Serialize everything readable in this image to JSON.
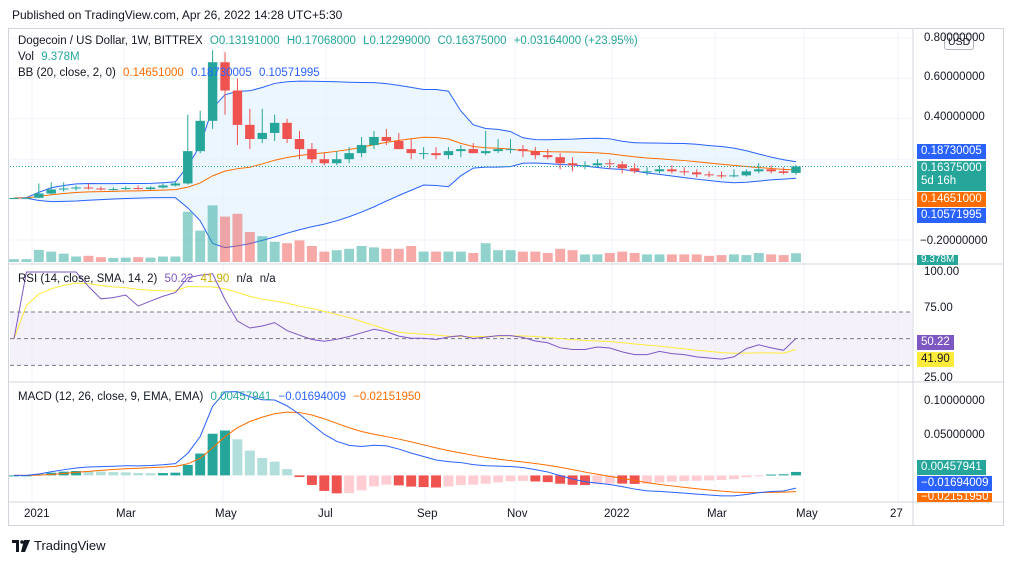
{
  "header": {
    "published": "Published on TradingView.com, Apr 26, 2022 14:28 UTC+5:30"
  },
  "brand": {
    "name": "TradingView",
    "logo_icon": "tradingview-logo-icon"
  },
  "currency_button": "USD",
  "legend": {
    "symbol": "Dogecoin / US Dollar, 1W, BITTREX",
    "open": "O0.13191000",
    "high": "H0.17068000",
    "low": "L0.12299000",
    "close": "C0.16375000",
    "change": "+0.03164000 (+23.95%)",
    "vol_label": "Vol",
    "vol_value": "9.378M",
    "bb_label": "BB (20, close, 2, 0)",
    "bb_mid": "0.14651000",
    "bb_upper": "0.18730005",
    "bb_lower": "0.10571995",
    "rsi_label": "RSI (14, close, SMA, 14, 2)",
    "rsi_value": "50.22",
    "rsi_sma": "41.90",
    "rsi_na1": "n/a",
    "rsi_na2": "n/a",
    "macd_label": "MACD (12, 26, close, 9, EMA, EMA)",
    "macd_hist": "0.00457941",
    "macd_line": "−0.01694009",
    "macd_signal": "−0.02151950"
  },
  "price_axis": [
    "0.80000000",
    "0.60000000",
    "0.40000000",
    "−0.20000000"
  ],
  "price_tags": {
    "upper": {
      "text": "0.18730005",
      "color": "#2962ff"
    },
    "close": {
      "text": "0.16375000",
      "sub": "5d 16h",
      "color": "#26a69a"
    },
    "mid": {
      "text": "0.14651000",
      "color": "#ff6d00"
    },
    "lower": {
      "text": "0.10571995",
      "color": "#2962ff"
    },
    "vol": {
      "text": "9.378M",
      "color": "#26a69a"
    }
  },
  "rsi_axis": [
    "100.00",
    "75.00",
    "25.00"
  ],
  "rsi_tags": {
    "rsi": {
      "text": "50.22",
      "color": "#7e57c2"
    },
    "sma": {
      "text": "41.90",
      "color": "#ffeb3b"
    }
  },
  "macd_axis": [
    "0.10000000",
    "0.05000000"
  ],
  "macd_tags": {
    "hist": {
      "text": "0.00457941",
      "color": "#26a69a"
    },
    "macd": {
      "text": "−0.01694009",
      "color": "#2962ff"
    },
    "signal": {
      "text": "−0.02151950",
      "color": "#ff6d00"
    }
  },
  "time_axis": [
    "2021",
    "Mar",
    "May",
    "Jul",
    "Sep",
    "Nov",
    "2022",
    "Mar",
    "May",
    "27"
  ],
  "colors": {
    "up": "#26a69a",
    "down": "#ef5350",
    "bb": "#2962ff",
    "bb_mid": "#ff6d00",
    "bb_fill": "#e3f2fd",
    "rsi": "#7e57c2",
    "rsi_sma": "#ffeb3b",
    "rsi_band": "#ede7f6"
  },
  "chart_data": {
    "type": "candlestick",
    "title": "Dogecoin / US Dollar, 1W, BITTREX",
    "interval": "1W",
    "grid": true,
    "ylim": [
      -0.2,
      0.8
    ],
    "x": [
      "2021-01",
      "2021-01",
      "2021-01",
      "2021-01",
      "2021-02",
      "2021-02",
      "2021-02",
      "2021-02",
      "2021-03",
      "2021-03",
      "2021-03",
      "2021-03",
      "2021-04",
      "2021-04",
      "2021-04",
      "2021-04",
      "2021-05",
      "2021-05",
      "2021-05",
      "2021-05",
      "2021-06",
      "2021-06",
      "2021-06",
      "2021-06",
      "2021-07",
      "2021-07",
      "2021-07",
      "2021-07",
      "2021-08",
      "2021-08",
      "2021-08",
      "2021-08",
      "2021-09",
      "2021-09",
      "2021-09",
      "2021-09",
      "2021-10",
      "2021-10",
      "2021-10",
      "2021-10",
      "2021-11",
      "2021-11",
      "2021-11",
      "2021-11",
      "2021-12",
      "2021-12",
      "2021-12",
      "2021-12",
      "2022-01",
      "2022-01",
      "2022-01",
      "2022-01",
      "2022-02",
      "2022-02",
      "2022-02",
      "2022-02",
      "2022-03",
      "2022-03",
      "2022-03",
      "2022-03",
      "2022-04",
      "2022-04",
      "2022-04",
      "2022-04"
    ],
    "open": [
      0.005,
      0.008,
      0.009,
      0.03,
      0.05,
      0.055,
      0.06,
      0.055,
      0.05,
      0.052,
      0.057,
      0.052,
      0.06,
      0.07,
      0.08,
      0.24,
      0.39,
      0.68,
      0.54,
      0.37,
      0.3,
      0.33,
      0.38,
      0.3,
      0.25,
      0.2,
      0.18,
      0.2,
      0.23,
      0.27,
      0.31,
      0.29,
      0.25,
      0.23,
      0.23,
      0.22,
      0.24,
      0.25,
      0.23,
      0.24,
      0.25,
      0.25,
      0.24,
      0.22,
      0.21,
      0.18,
      0.17,
      0.17,
      0.18,
      0.175,
      0.155,
      0.14,
      0.14,
      0.15,
      0.14,
      0.135,
      0.125,
      0.12,
      0.115,
      0.12,
      0.14,
      0.15,
      0.14,
      0.132
    ],
    "high": [
      0.01,
      0.012,
      0.08,
      0.085,
      0.085,
      0.07,
      0.08,
      0.065,
      0.06,
      0.065,
      0.07,
      0.065,
      0.08,
      0.09,
      0.42,
      0.44,
      0.74,
      0.73,
      0.6,
      0.45,
      0.45,
      0.42,
      0.4,
      0.34,
      0.28,
      0.23,
      0.24,
      0.26,
      0.31,
      0.34,
      0.35,
      0.33,
      0.3,
      0.26,
      0.26,
      0.26,
      0.27,
      0.28,
      0.34,
      0.3,
      0.3,
      0.27,
      0.26,
      0.25,
      0.23,
      0.21,
      0.19,
      0.2,
      0.2,
      0.19,
      0.18,
      0.16,
      0.17,
      0.17,
      0.16,
      0.15,
      0.14,
      0.14,
      0.15,
      0.15,
      0.18,
      0.17,
      0.16,
      0.171
    ],
    "low": [
      0.004,
      0.006,
      0.008,
      0.025,
      0.04,
      0.045,
      0.05,
      0.045,
      0.045,
      0.048,
      0.05,
      0.048,
      0.055,
      0.065,
      0.075,
      0.23,
      0.35,
      0.42,
      0.27,
      0.25,
      0.28,
      0.29,
      0.28,
      0.2,
      0.18,
      0.17,
      0.17,
      0.18,
      0.21,
      0.25,
      0.27,
      0.25,
      0.2,
      0.2,
      0.2,
      0.2,
      0.21,
      0.23,
      0.22,
      0.23,
      0.23,
      0.21,
      0.2,
      0.2,
      0.15,
      0.14,
      0.15,
      0.16,
      0.15,
      0.13,
      0.13,
      0.12,
      0.13,
      0.13,
      0.12,
      0.11,
      0.11,
      0.105,
      0.11,
      0.115,
      0.13,
      0.13,
      0.125,
      0.123
    ],
    "close": [
      0.008,
      0.009,
      0.03,
      0.05,
      0.055,
      0.06,
      0.055,
      0.05,
      0.052,
      0.057,
      0.052,
      0.06,
      0.07,
      0.08,
      0.24,
      0.39,
      0.68,
      0.54,
      0.37,
      0.3,
      0.33,
      0.38,
      0.3,
      0.25,
      0.2,
      0.18,
      0.2,
      0.23,
      0.27,
      0.31,
      0.29,
      0.25,
      0.23,
      0.23,
      0.22,
      0.24,
      0.25,
      0.23,
      0.24,
      0.25,
      0.25,
      0.24,
      0.22,
      0.21,
      0.18,
      0.17,
      0.17,
      0.18,
      0.175,
      0.155,
      0.14,
      0.14,
      0.15,
      0.14,
      0.135,
      0.125,
      0.12,
      0.115,
      0.12,
      0.14,
      0.15,
      0.14,
      0.132,
      0.164
    ],
    "bb_upper": 0.18730005,
    "bb_mid": 0.14651,
    "bb_lower": 0.10571995,
    "volume_last": "9.378M",
    "rsi_last": 50.22,
    "rsi_sma_last": 41.9,
    "rsi_ylim": [
      25,
      100
    ],
    "macd_last": -0.01694009,
    "macd_signal_last": -0.0215195,
    "macd_hist_last": 0.00457941,
    "macd_ylim": [
      -0.03,
      0.1
    ]
  }
}
